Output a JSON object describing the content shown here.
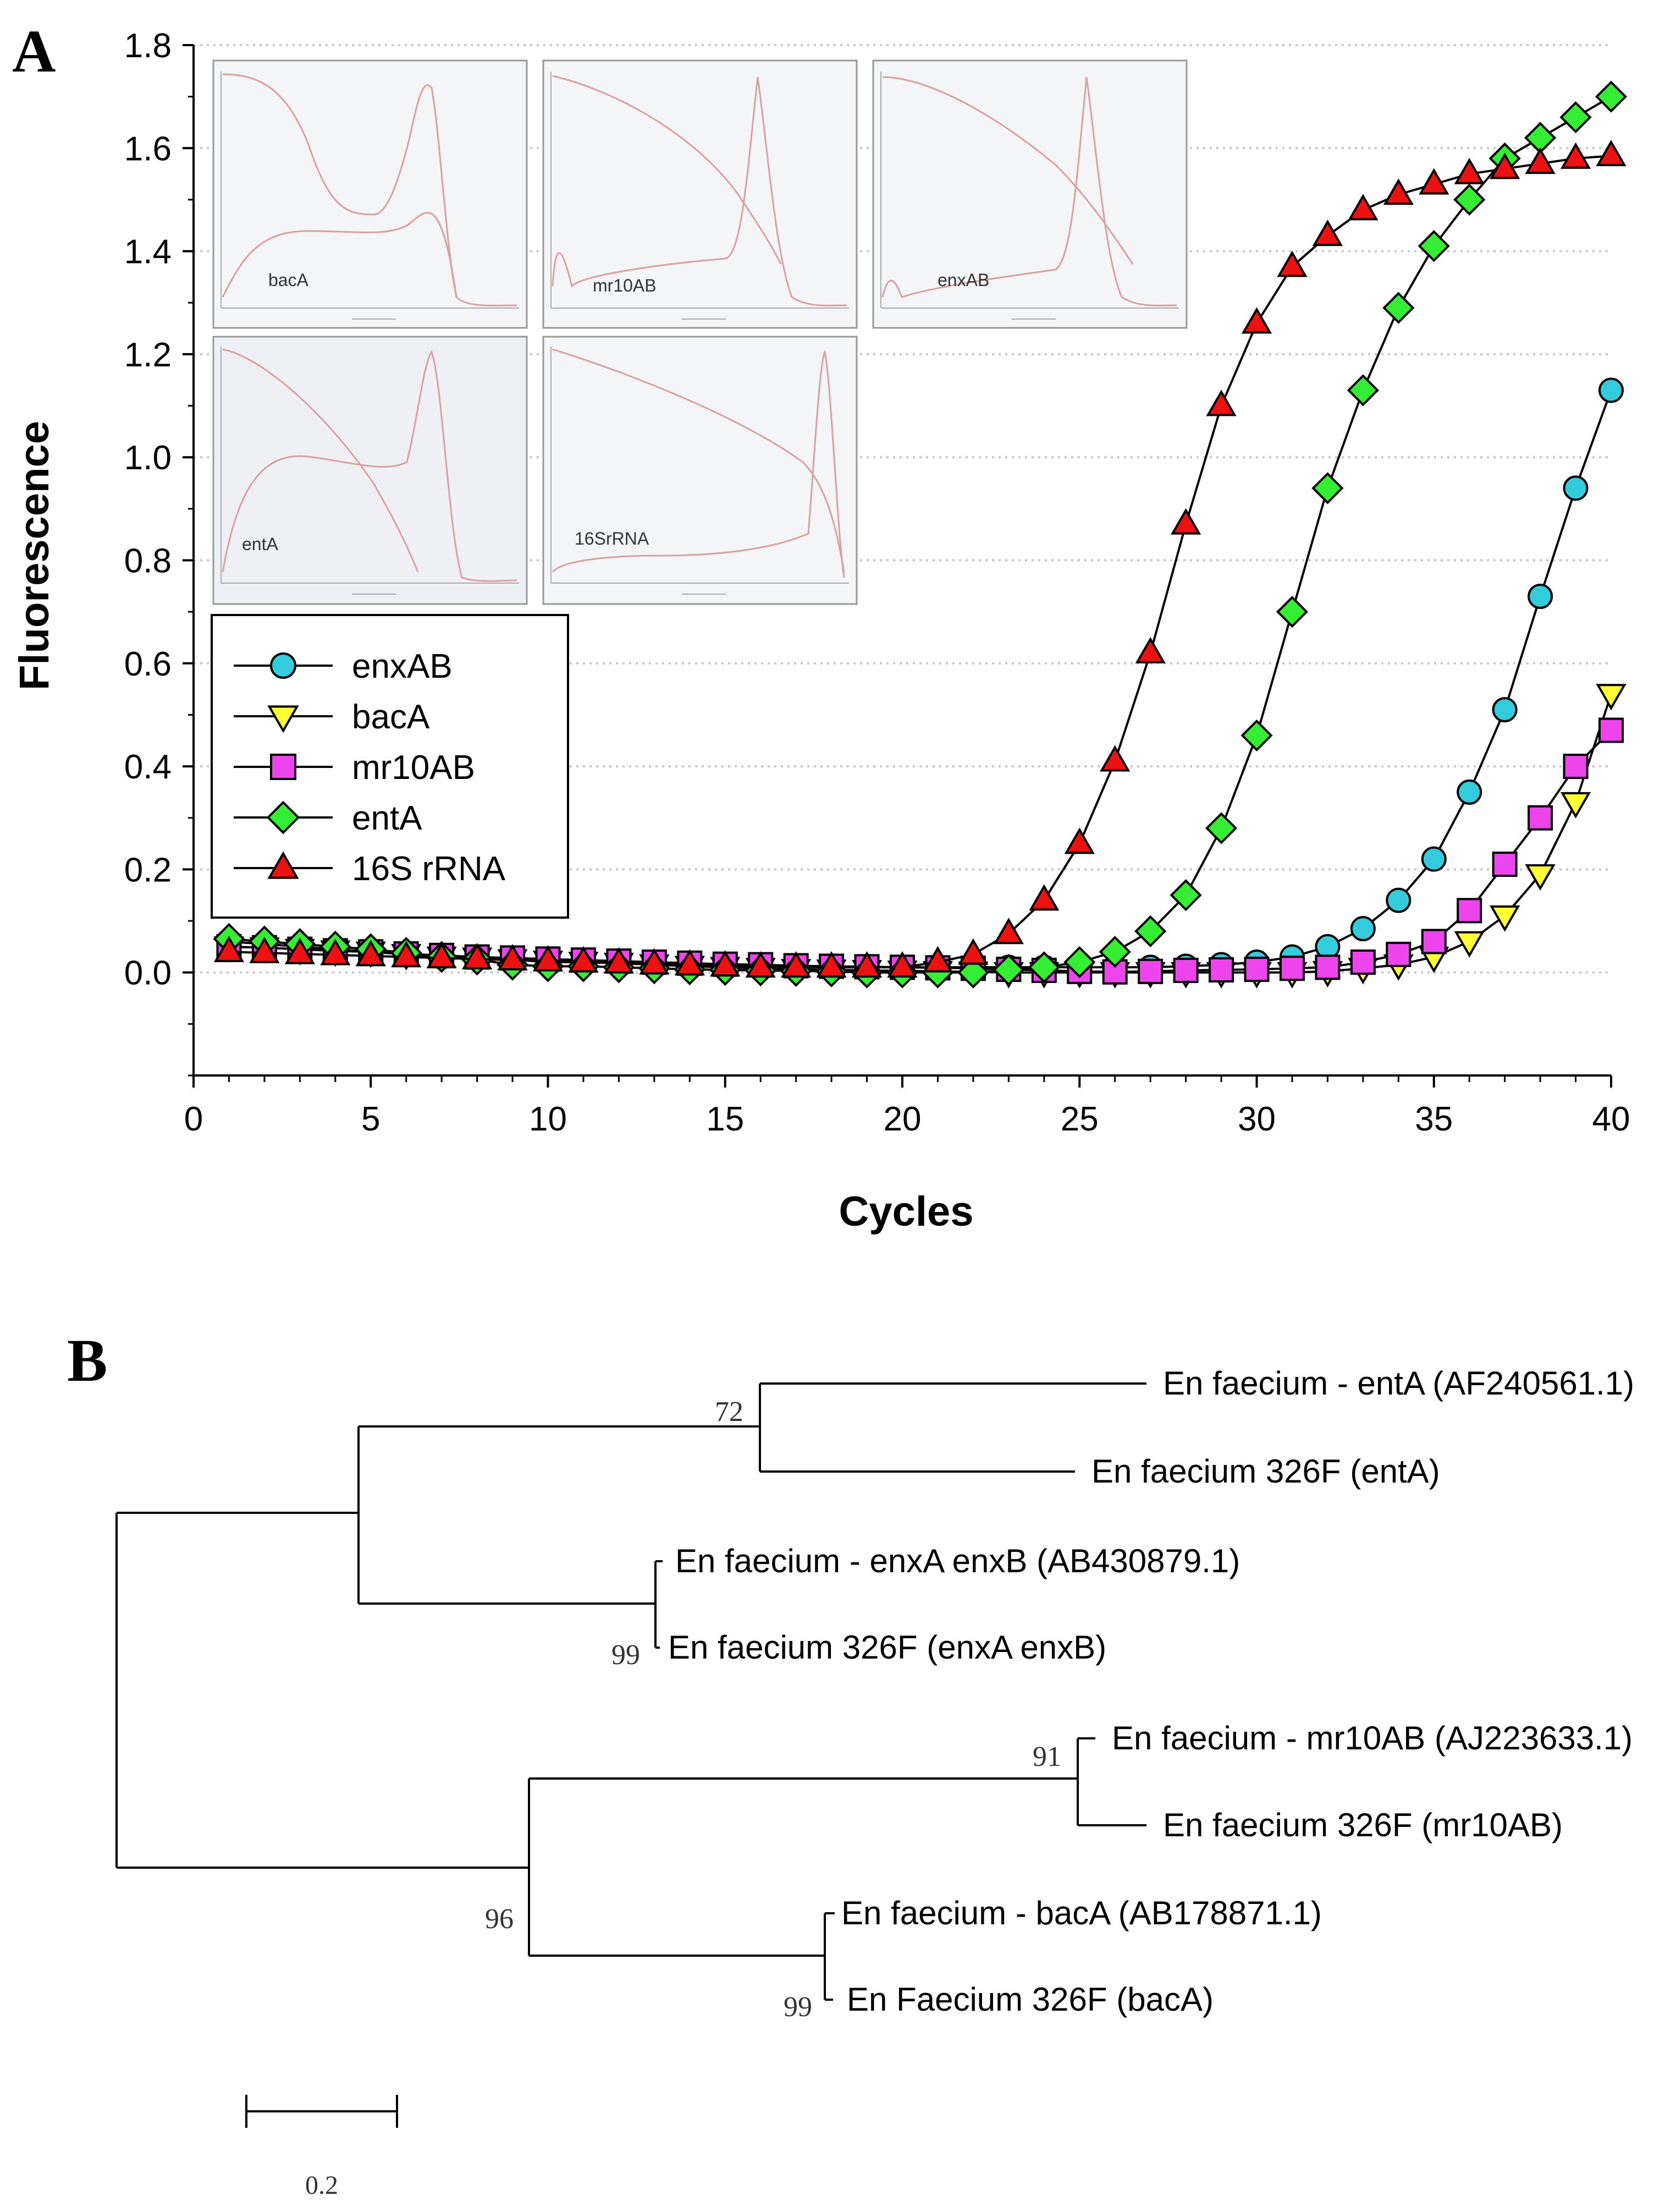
{
  "panel_a": {
    "label": "A",
    "chart_data": {
      "type": "line",
      "xlabel": "Cycles",
      "ylabel": "Fluorescence",
      "xlim": [
        0,
        40
      ],
      "ylim": [
        -0.2,
        1.8
      ],
      "xticks": [
        0,
        5,
        10,
        15,
        20,
        25,
        30,
        35,
        40
      ],
      "yticks": [
        0.0,
        0.2,
        0.4,
        0.6,
        0.8,
        1.0,
        1.2,
        1.4,
        1.6,
        1.8
      ],
      "x": [
        1,
        2,
        3,
        4,
        5,
        6,
        7,
        8,
        9,
        10,
        11,
        12,
        13,
        14,
        15,
        16,
        17,
        18,
        19,
        20,
        21,
        22,
        23,
        24,
        25,
        26,
        27,
        28,
        29,
        30,
        31,
        32,
        33,
        34,
        35,
        36,
        37,
        38,
        39,
        40
      ],
      "series": [
        {
          "name": "enxAB",
          "marker": "circle",
          "color": "#33ccdd",
          "values": [
            0.06,
            0.055,
            0.05,
            0.045,
            0.04,
            0.035,
            0.03,
            0.03,
            0.025,
            0.02,
            0.02,
            0.018,
            0.015,
            0.015,
            0.012,
            0.012,
            0.01,
            0.01,
            0.01,
            0.01,
            0.01,
            0.01,
            0.01,
            0.01,
            0.01,
            0.01,
            0.01,
            0.012,
            0.015,
            0.02,
            0.03,
            0.05,
            0.085,
            0.14,
            0.22,
            0.35,
            0.51,
            0.73,
            0.94,
            1.13
          ]
        },
        {
          "name": "bacA",
          "marker": "triangle-down",
          "color": "#ffff33",
          "values": [
            0.05,
            0.048,
            0.045,
            0.042,
            0.04,
            0.035,
            0.03,
            0.028,
            0.025,
            0.022,
            0.02,
            0.018,
            0.015,
            0.012,
            0.01,
            0.008,
            0.006,
            0.005,
            0.004,
            0.003,
            0.002,
            0.001,
            0.0,
            0.0,
            0.0,
            0.0,
            0.0,
            0.0,
            0.0,
            0.0,
            0.0,
            0.002,
            0.008,
            0.015,
            0.03,
            0.06,
            0.11,
            0.19,
            0.33,
            0.54
          ]
        },
        {
          "name": "mr10AB",
          "marker": "square",
          "color": "#ee44ee",
          "values": [
            0.05,
            0.048,
            0.045,
            0.042,
            0.04,
            0.036,
            0.033,
            0.03,
            0.028,
            0.026,
            0.024,
            0.022,
            0.02,
            0.018,
            0.016,
            0.015,
            0.013,
            0.012,
            0.011,
            0.01,
            0.009,
            0.008,
            0.006,
            0.004,
            0.002,
            0.001,
            0.002,
            0.004,
            0.005,
            0.006,
            0.008,
            0.01,
            0.02,
            0.035,
            0.06,
            0.12,
            0.21,
            0.3,
            0.4,
            0.47
          ]
        },
        {
          "name": "entA",
          "marker": "diamond",
          "color": "#33ee33",
          "values": [
            0.065,
            0.06,
            0.055,
            0.05,
            0.045,
            0.038,
            0.03,
            0.025,
            0.015,
            0.012,
            0.012,
            0.01,
            0.008,
            0.006,
            0.005,
            0.004,
            0.003,
            0.002,
            0.0,
            0.0,
            0.0,
            0.0,
            0.005,
            0.01,
            0.02,
            0.04,
            0.08,
            0.15,
            0.28,
            0.46,
            0.7,
            0.94,
            1.13,
            1.29,
            1.41,
            1.5,
            1.58,
            1.62,
            1.66,
            1.7
          ]
        },
        {
          "name": "16S rRNA",
          "marker": "triangle-up",
          "color": "#ee1111",
          "values": [
            0.04,
            0.038,
            0.036,
            0.034,
            0.032,
            0.03,
            0.028,
            0.026,
            0.024,
            0.022,
            0.02,
            0.018,
            0.016,
            0.014,
            0.012,
            0.01,
            0.01,
            0.01,
            0.01,
            0.01,
            0.02,
            0.035,
            0.075,
            0.14,
            0.25,
            0.41,
            0.62,
            0.87,
            1.1,
            1.26,
            1.37,
            1.43,
            1.48,
            1.51,
            1.53,
            1.55,
            1.56,
            1.57,
            1.58,
            1.585
          ]
        }
      ]
    },
    "insets": [
      {
        "label": "bacA"
      },
      {
        "label": "mr10AB"
      },
      {
        "label": "enxAB"
      },
      {
        "label": "entA"
      },
      {
        "label": "16SrRNA"
      }
    ]
  },
  "panel_b": {
    "label": "B",
    "leaves": [
      "En faecium - entA (AF240561.1)",
      "En faecium 326F (entA)",
      "En faecium - enxA enxB (AB430879.1)",
      "En faecium 326F (enxA enxB)",
      "En faecium - mr10AB (AJ223633.1)",
      "En faecium 326F (mr10AB)",
      "En faecium - bacA (AB178871.1)",
      "En Faecium 326F (bacA)"
    ],
    "bootstrap": [
      "72",
      "99",
      "91",
      "96",
      "99"
    ],
    "scale_label": "0.2"
  }
}
